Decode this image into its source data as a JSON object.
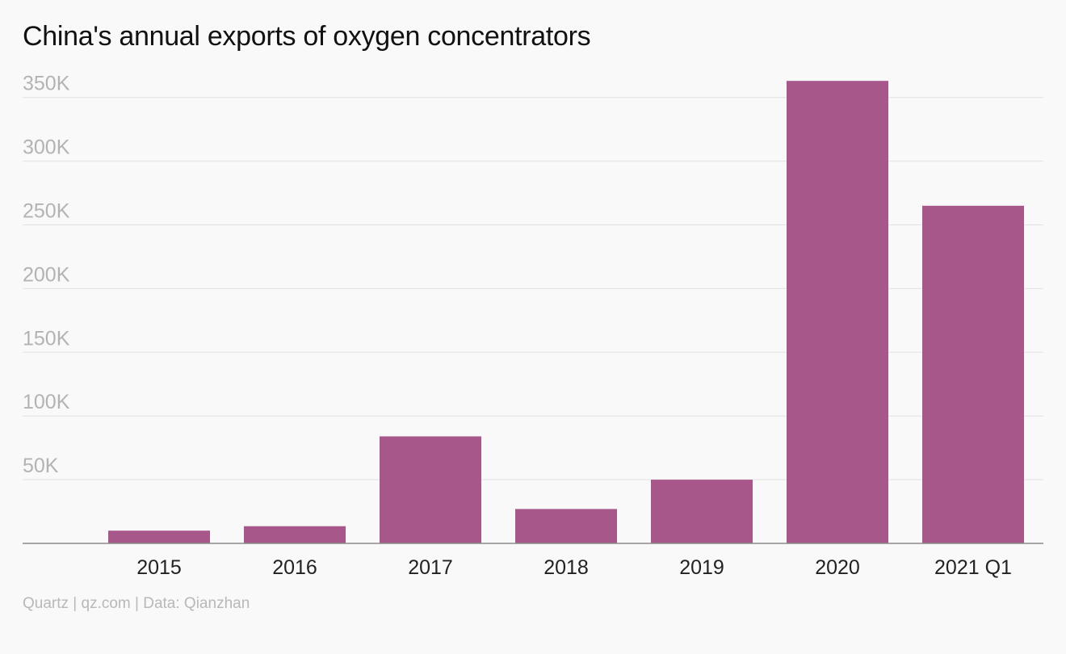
{
  "chart_data": {
    "type": "bar",
    "title": "China's annual exports of oxygen concentrators",
    "categories": [
      "2015",
      "2016",
      "2017",
      "2018",
      "2019",
      "2020",
      "2021 Q1"
    ],
    "values": [
      10000,
      13500,
      84000,
      27000,
      50000,
      363000,
      265000
    ],
    "y_ticks": [
      "50K",
      "100K",
      "150K",
      "200K",
      "250K",
      "300K",
      "350K"
    ],
    "y_tick_values": [
      50000,
      100000,
      150000,
      200000,
      250000,
      300000,
      350000
    ],
    "ylim": [
      0,
      350000
    ],
    "grid": true,
    "bar_color": "#a8578a"
  },
  "footer": {
    "source": "Quartz | qz.com | Data: Qianzhan"
  }
}
